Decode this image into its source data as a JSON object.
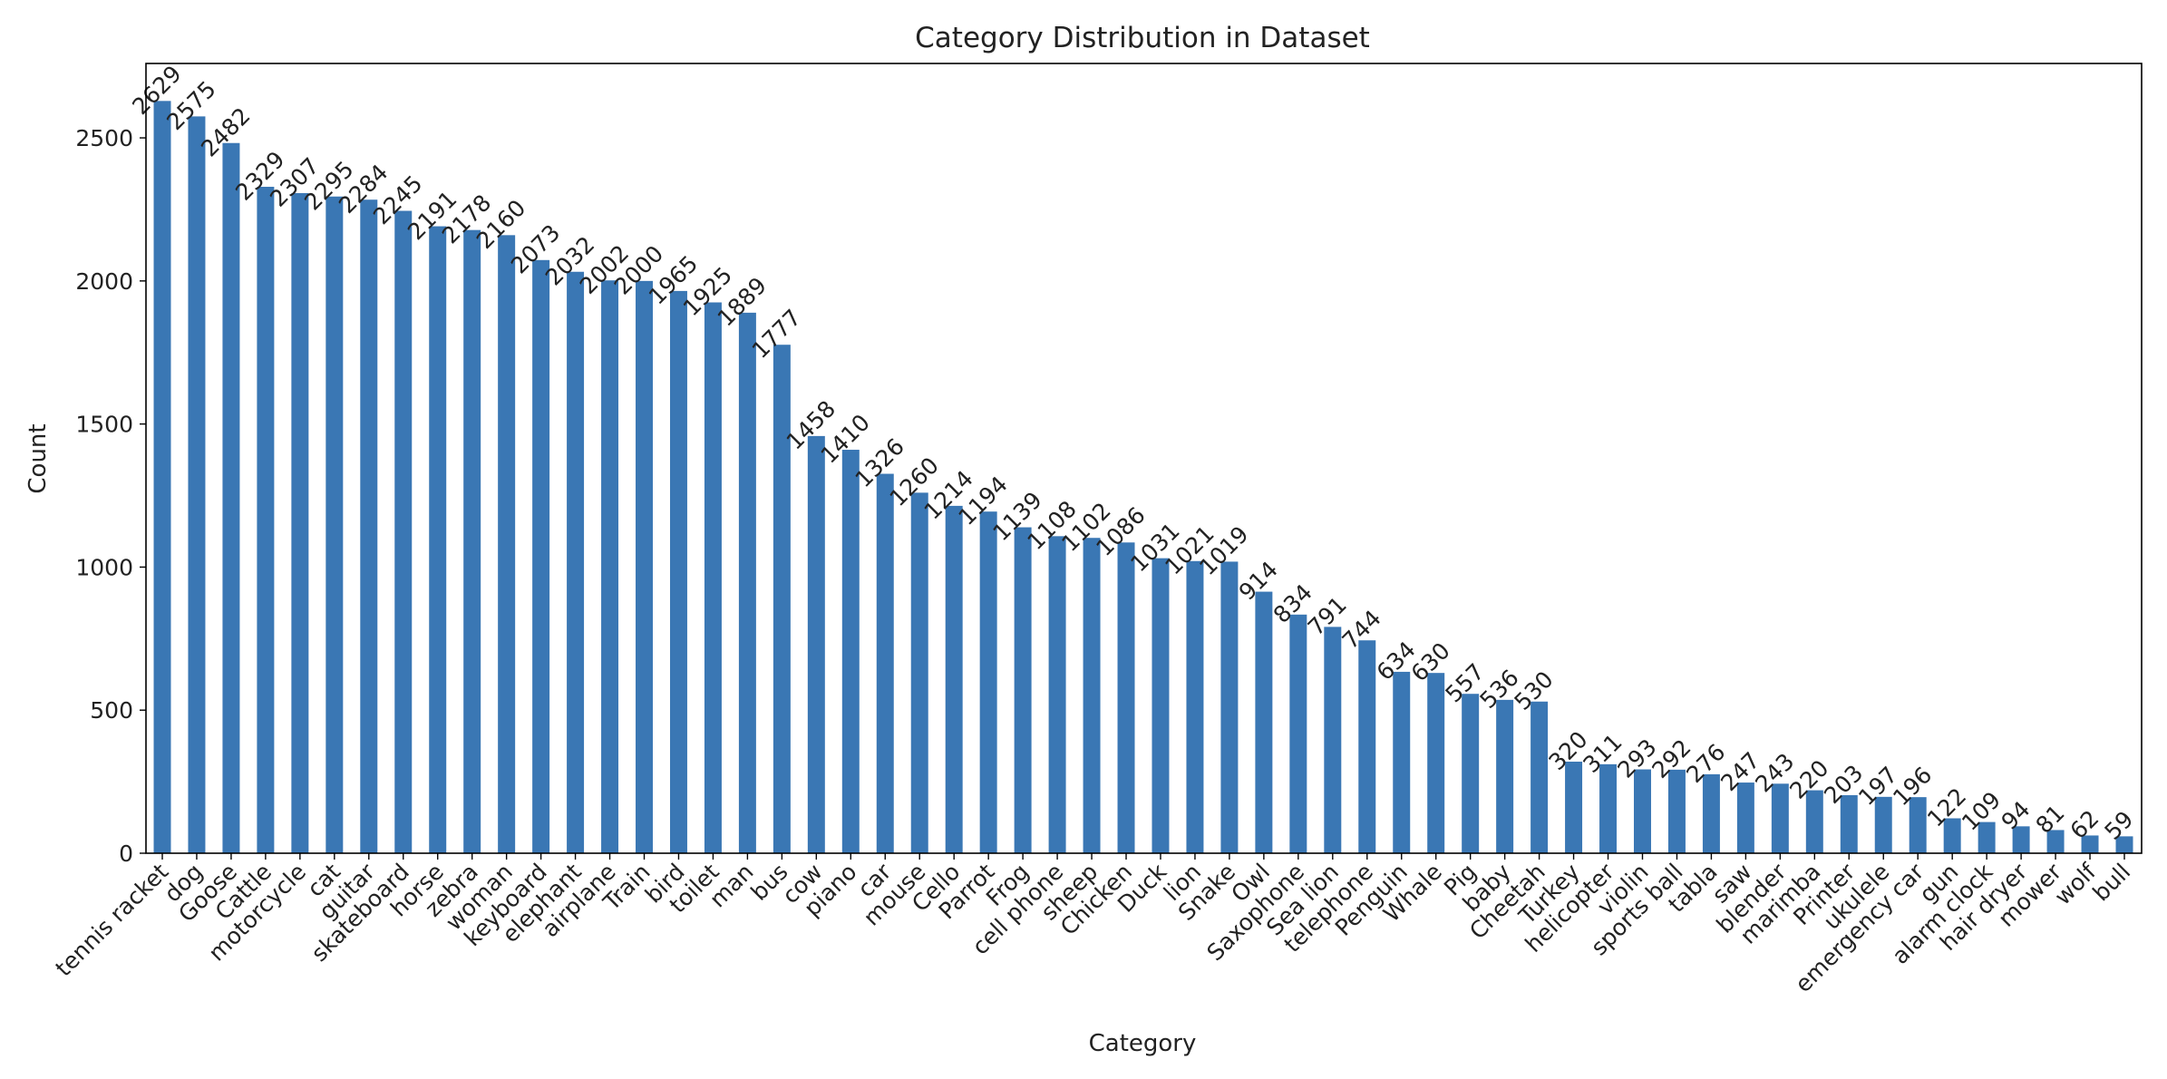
{
  "chart_data": {
    "type": "bar",
    "title": "Category Distribution in Dataset",
    "xlabel": "Category",
    "ylabel": "Count",
    "ylim": [
      0,
      2760
    ],
    "yticks": [
      0,
      500,
      1000,
      1500,
      2000,
      2500
    ],
    "grid": false,
    "legend": "none",
    "bar_color": "#3a77b4",
    "categories": [
      "tennis racket",
      "dog",
      "Goose",
      "Cattle",
      "motorcycle",
      "cat",
      "guitar",
      "skateboard",
      "horse",
      "zebra",
      "woman",
      "keyboard",
      "elephant",
      "airplane",
      "Train",
      "bird",
      "toilet",
      "man",
      "bus",
      "cow",
      "piano",
      "car",
      "mouse",
      "Cello",
      "Parrot",
      "Frog",
      "cell phone",
      "sheep",
      "Chicken",
      "Duck",
      "lion",
      "Snake",
      "Owl",
      "Saxophone",
      "Sea lion",
      "telephone",
      "Penguin",
      "Whale",
      "Pig",
      "baby",
      "Cheetah",
      "Turkey",
      "helicopter",
      "violin",
      "sports ball",
      "tabla",
      "saw",
      "blender",
      "marimba",
      "Printer",
      "ukulele",
      "emergency car",
      "gun",
      "alarm clock",
      "hair dryer",
      "mower",
      "wolf",
      "bull"
    ],
    "values": [
      2629,
      2575,
      2482,
      2329,
      2307,
      2295,
      2284,
      2245,
      2191,
      2178,
      2160,
      2073,
      2032,
      2002,
      2000,
      1965,
      1925,
      1889,
      1777,
      1458,
      1410,
      1326,
      1260,
      1214,
      1194,
      1139,
      1108,
      1102,
      1086,
      1031,
      1021,
      1019,
      914,
      834,
      791,
      744,
      634,
      630,
      557,
      536,
      530,
      320,
      311,
      293,
      292,
      276,
      247,
      243,
      220,
      203,
      197,
      196,
      122,
      109,
      94,
      81,
      62,
      59
    ]
  }
}
